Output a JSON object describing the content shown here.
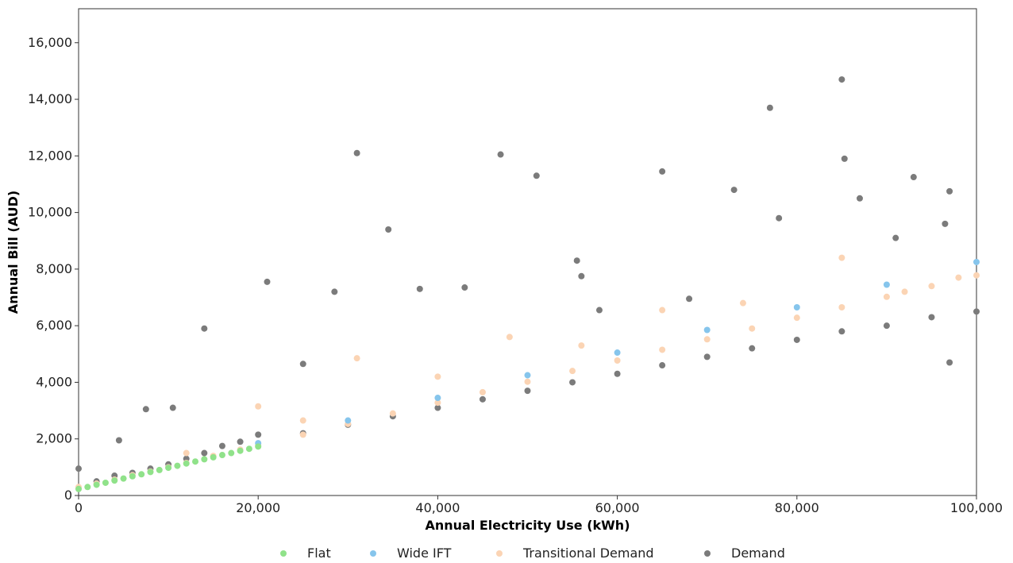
{
  "chart_data": {
    "type": "scatter",
    "title": "",
    "xlabel": "Annual Electricity Use (kWh)",
    "ylabel": "Annual Bill (AUD)",
    "xlim": [
      0,
      100000
    ],
    "ylim": [
      0,
      17200
    ],
    "xticks": [
      0,
      20000,
      40000,
      60000,
      80000,
      100000
    ],
    "xtick_labels": [
      "0",
      "20,000",
      "40,000",
      "60,000",
      "80,000",
      "100,000"
    ],
    "yticks": [
      0,
      2000,
      4000,
      6000,
      8000,
      10000,
      12000,
      14000,
      16000
    ],
    "ytick_labels": [
      "0",
      "2,000",
      "4,000",
      "6,000",
      "8,000",
      "10,000",
      "12,000",
      "14,000",
      "16,000"
    ],
    "grid": false,
    "legend_position": "bottom-center",
    "series": [
      {
        "name": "Flat",
        "color": "#90e28a",
        "x": [
          0,
          1000,
          2000,
          3000,
          4000,
          5000,
          6000,
          7000,
          8000,
          9000,
          10000,
          11000,
          12000,
          13000,
          14000,
          15000,
          16000,
          17000,
          18000,
          19000,
          20000
        ],
        "y": [
          230,
          300,
          380,
          450,
          530,
          600,
          680,
          750,
          830,
          900,
          980,
          1050,
          1130,
          1200,
          1280,
          1350,
          1430,
          1500,
          1580,
          1650,
          1730
        ]
      },
      {
        "name": "Wide IFT",
        "color": "#86c5ec",
        "x": [
          20000,
          30000,
          40000,
          50000,
          60000,
          70000,
          80000,
          90000,
          100000
        ],
        "y": [
          1850,
          2650,
          3450,
          4250,
          5050,
          5850,
          6650,
          7450,
          8250
        ]
      },
      {
        "name": "Transitional Demand",
        "color": "#fbd4b4",
        "x": [
          0,
          2000,
          4000,
          6000,
          8000,
          10000,
          12000,
          15000,
          18000,
          20000,
          25000,
          30000,
          35000,
          40000,
          45000,
          50000,
          55000,
          60000,
          65000,
          70000,
          75000,
          80000,
          85000,
          90000,
          95000,
          100000,
          12000,
          25000,
          31000,
          40000,
          48000,
          56000,
          65000,
          74000,
          85000,
          92000,
          98000,
          20000
        ],
        "y": [
          300,
          420,
          560,
          720,
          850,
          1000,
          1150,
          1400,
          1620,
          1780,
          2150,
          2530,
          2900,
          3280,
          3650,
          4020,
          4400,
          4770,
          5150,
          5520,
          5900,
          6280,
          6650,
          7020,
          7400,
          7780,
          1500,
          2650,
          4850,
          4200,
          5600,
          5300,
          6550,
          6800,
          8400,
          7200,
          7700,
          3150
        ]
      },
      {
        "name": "Demand",
        "color": "#7b7b7b",
        "x": [
          0,
          2000,
          4000,
          6000,
          8000,
          10000,
          12000,
          14000,
          16000,
          18000,
          20000,
          25000,
          30000,
          35000,
          40000,
          45000,
          50000,
          55000,
          60000,
          65000,
          70000,
          75000,
          80000,
          85000,
          90000,
          95000,
          100000,
          31000,
          47000,
          51000,
          65000,
          73000,
          77000,
          85000,
          85300,
          93000,
          97000,
          34500,
          28500,
          38000,
          43000,
          21000,
          14000,
          7500,
          10500,
          4500,
          55500,
          56000,
          25000,
          58000,
          68000,
          78000,
          87000,
          91000,
          96500,
          97000
        ],
        "y": [
          950,
          500,
          700,
          800,
          950,
          1100,
          1300,
          1500,
          1750,
          1900,
          2150,
          2200,
          2500,
          2800,
          3100,
          3400,
          3700,
          4000,
          4300,
          4600,
          4900,
          5200,
          5500,
          5800,
          6000,
          6300,
          6500,
          12100,
          12050,
          11300,
          11450,
          10800,
          13700,
          14700,
          11900,
          11250,
          10750,
          9400,
          7200,
          7300,
          7350,
          7550,
          5900,
          3050,
          3100,
          1950,
          8300,
          7750,
          4650,
          6550,
          6950,
          9800,
          10500,
          9100,
          9600,
          4700
        ]
      }
    ]
  }
}
